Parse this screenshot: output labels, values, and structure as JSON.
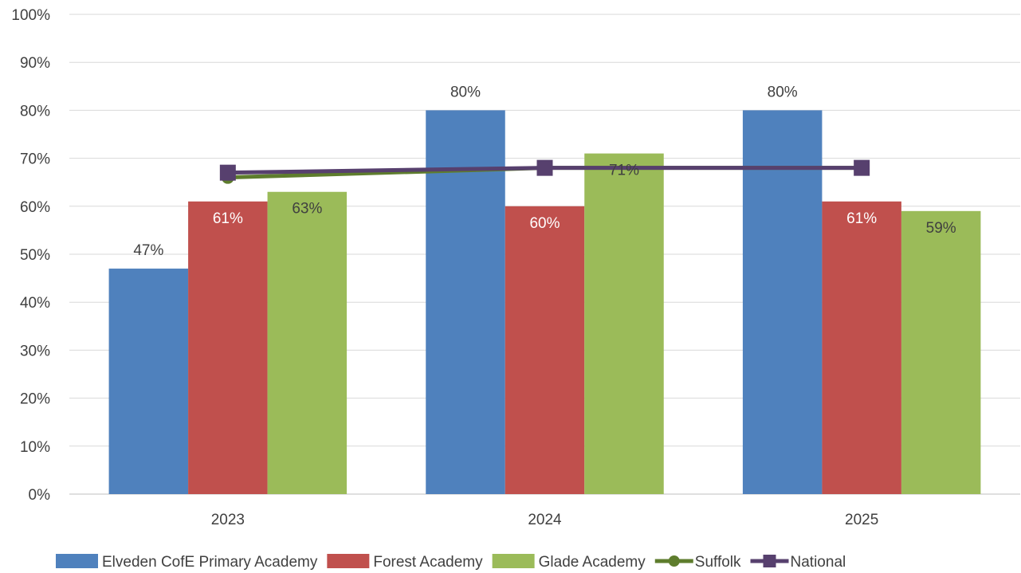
{
  "chart_data": {
    "type": "bar",
    "categories": [
      "2023",
      "2024",
      "2025"
    ],
    "y_ticks": [
      "0%",
      "10%",
      "20%",
      "30%",
      "40%",
      "50%",
      "60%",
      "70%",
      "80%",
      "90%",
      "100%"
    ],
    "ylim": [
      0,
      100
    ],
    "grid": true,
    "legend_position": "bottom",
    "series": [
      {
        "name": "Elveden CofE Primary Academy",
        "type": "bar",
        "color": "#4f81bd",
        "values": [
          47,
          80,
          80
        ],
        "labels": [
          "47%",
          "80%",
          "80%"
        ],
        "label_color": "#404040",
        "label_position": "above"
      },
      {
        "name": "Forest Academy",
        "type": "bar",
        "color": "#c0504d",
        "values": [
          61,
          60,
          61
        ],
        "labels": [
          "61%",
          "60%",
          "61%"
        ],
        "label_color": "#ffffff",
        "label_position": "inside"
      },
      {
        "name": "Glade Academy",
        "type": "bar",
        "color": "#9bbb59",
        "values": [
          63,
          71,
          59
        ],
        "labels": [
          "63%",
          "71%",
          "59%"
        ],
        "label_color": "#404040",
        "label_position": "inside"
      },
      {
        "name": "Suffolk",
        "type": "line",
        "marker": "circle",
        "color": "#5e7d2d",
        "values": [
          66,
          68,
          68
        ]
      },
      {
        "name": "National",
        "type": "line",
        "marker": "square",
        "color": "#57406e",
        "values": [
          67,
          68,
          68
        ]
      }
    ]
  }
}
